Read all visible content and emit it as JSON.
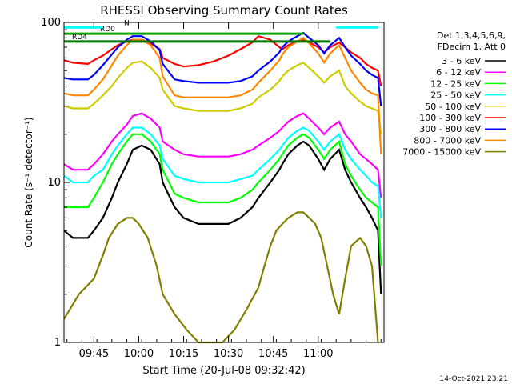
{
  "chart_data": {
    "type": "line",
    "title": "RHESSI Observing Summary Count Rates",
    "xlabel": "Start Time (20-Jul-08 09:32:42)",
    "ylabel": "Count Rate (s⁻¹ detector⁻¹)",
    "yscale": "log",
    "ylim": [
      1,
      100
    ],
    "yticks": [
      {
        "v": 1,
        "label": "1"
      },
      {
        "v": 10,
        "label": "10"
      },
      {
        "v": 100,
        "label": "100"
      }
    ],
    "xlim_min": [
      575,
      682
    ],
    "xticks": [
      {
        "m": 585,
        "label": "09:45"
      },
      {
        "m": 600,
        "label": "10:00"
      },
      {
        "m": 615,
        "label": "10:15"
      },
      {
        "m": 630,
        "label": "10:30"
      },
      {
        "m": 645,
        "label": "10:45"
      },
      {
        "m": 660,
        "label": "11:00"
      }
    ],
    "legend_header": [
      "Det 1,3,4,5,6,9,",
      "FDecim 1, Att 0"
    ],
    "flags": [
      {
        "label": "RD0",
        "level": 85,
        "segments": [
          [
            575,
            655
          ]
        ],
        "color": "#00aa00"
      },
      {
        "label": "RD4",
        "level": 76,
        "segments": [
          [
            575,
            664
          ]
        ],
        "color": "#007700"
      },
      {
        "label": "N",
        "level": 93,
        "segments": [
          [
            575,
            588
          ],
          [
            666,
            680
          ]
        ],
        "color": "#00ffff"
      }
    ],
    "series": [
      {
        "name": "3 - 6 keV",
        "color": "#000000",
        "x": [
          575,
          578,
          583,
          585,
          588,
          591,
          593,
          596,
          598,
          601,
          604,
          607,
          608,
          612,
          615,
          620,
          625,
          630,
          634,
          638,
          640,
          644,
          647,
          648,
          650,
          653,
          655,
          657,
          660,
          662,
          664,
          667,
          669,
          671,
          674,
          676,
          678,
          680,
          681
        ],
        "y": [
          5,
          4.5,
          4.5,
          5,
          6,
          8,
          10,
          13,
          16,
          17,
          16,
          13,
          10,
          7,
          6,
          5.5,
          5.5,
          5.5,
          6,
          7,
          8,
          10,
          12,
          13,
          15,
          17,
          18,
          17,
          14,
          12,
          14,
          16,
          12,
          10,
          8,
          7,
          6,
          5,
          2
        ]
      },
      {
        "name": "6 - 12 keV",
        "color": "#ff00ff",
        "x": [
          575,
          578,
          583,
          585,
          588,
          591,
          593,
          596,
          598,
          601,
          604,
          607,
          608,
          612,
          615,
          620,
          625,
          630,
          634,
          638,
          640,
          644,
          647,
          648,
          650,
          653,
          655,
          657,
          660,
          662,
          664,
          667,
          669,
          671,
          674,
          676,
          678,
          680,
          681
        ],
        "y": [
          13,
          12,
          12,
          13,
          15,
          18,
          20,
          23,
          26,
          27,
          25,
          22,
          18,
          16,
          15,
          14.5,
          14.5,
          14.5,
          15,
          16,
          17,
          19,
          21,
          22,
          24,
          26,
          27,
          25,
          22,
          20,
          22,
          24,
          20,
          18,
          15,
          14,
          13,
          12,
          8
        ]
      },
      {
        "name": "12 - 25 keV",
        "color": "#00ff00",
        "x": [
          575,
          578,
          583,
          585,
          588,
          591,
          593,
          596,
          598,
          601,
          604,
          607,
          608,
          612,
          615,
          620,
          625,
          630,
          634,
          638,
          640,
          644,
          647,
          648,
          650,
          653,
          655,
          657,
          660,
          662,
          664,
          667,
          669,
          671,
          674,
          676,
          678,
          680,
          681
        ],
        "y": [
          7,
          7,
          7,
          8,
          10,
          13,
          15,
          18,
          20,
          20,
          18,
          15,
          12,
          8.5,
          8,
          7.5,
          7.5,
          7.5,
          8,
          9,
          10,
          12,
          14,
          15,
          17,
          19,
          20,
          19,
          16,
          14,
          16,
          18,
          13,
          11,
          9,
          8,
          7.5,
          7,
          3
        ]
      },
      {
        "name": "25 - 50 keV",
        "color": "#00ffff",
        "x": [
          575,
          578,
          583,
          585,
          588,
          591,
          593,
          596,
          598,
          601,
          604,
          607,
          608,
          612,
          615,
          620,
          625,
          630,
          634,
          638,
          640,
          644,
          647,
          648,
          650,
          653,
          655,
          657,
          660,
          662,
          664,
          667,
          669,
          671,
          674,
          676,
          678,
          680,
          681
        ],
        "y": [
          11,
          10,
          10,
          11,
          12,
          15,
          17,
          20,
          22,
          22,
          20,
          17,
          14,
          11,
          10.5,
          10,
          10,
          10,
          10.5,
          11,
          12,
          14,
          16,
          17,
          19,
          21,
          22,
          21,
          18,
          16,
          18,
          20,
          16,
          14,
          12,
          11,
          10,
          9.5,
          6
        ]
      },
      {
        "name": "50 - 100 keV",
        "color": "#cccc00",
        "x": [
          575,
          578,
          583,
          585,
          588,
          591,
          593,
          596,
          598,
          601,
          604,
          607,
          608,
          612,
          615,
          620,
          625,
          630,
          634,
          638,
          640,
          644,
          647,
          648,
          650,
          653,
          655,
          657,
          660,
          662,
          664,
          667,
          669,
          671,
          674,
          676,
          678,
          680,
          681
        ],
        "y": [
          30,
          29,
          29,
          31,
          35,
          40,
          45,
          52,
          56,
          57,
          52,
          45,
          38,
          30,
          29,
          28,
          28,
          28,
          29,
          31,
          34,
          38,
          43,
          46,
          50,
          54,
          56,
          52,
          46,
          42,
          46,
          50,
          40,
          36,
          32,
          30,
          29,
          28,
          20
        ]
      },
      {
        "name": "100 - 300 keV",
        "color": "#ff0000",
        "x": [
          575,
          578,
          583,
          585,
          588,
          591,
          593,
          596,
          598,
          601,
          604,
          607,
          608,
          612,
          615,
          620,
          625,
          630,
          634,
          638,
          640,
          644,
          647,
          648,
          650,
          653,
          655,
          657,
          660,
          662,
          664,
          667,
          669,
          671,
          674,
          676,
          678,
          680,
          681
        ],
        "y": [
          58,
          56,
          55,
          58,
          62,
          68,
          72,
          76,
          78,
          78,
          74,
          68,
          60,
          55,
          53,
          54,
          57,
          62,
          68,
          75,
          82,
          78,
          70,
          68,
          72,
          76,
          78,
          75,
          70,
          65,
          70,
          75,
          70,
          65,
          60,
          55,
          52,
          50,
          40
        ]
      },
      {
        "name": "300 - 800 keV",
        "color": "#0000ff",
        "x": [
          575,
          578,
          583,
          585,
          588,
          591,
          593,
          596,
          598,
          601,
          604,
          607,
          608,
          612,
          615,
          620,
          625,
          630,
          634,
          638,
          640,
          644,
          647,
          648,
          650,
          653,
          655,
          657,
          660,
          662,
          664,
          667,
          669,
          671,
          674,
          676,
          678,
          680,
          681
        ],
        "y": [
          45,
          44,
          44,
          47,
          54,
          63,
          70,
          78,
          82,
          82,
          76,
          67,
          55,
          44,
          43,
          42,
          42,
          42,
          43,
          46,
          50,
          57,
          65,
          70,
          76,
          82,
          86,
          80,
          72,
          64,
          72,
          80,
          70,
          62,
          55,
          50,
          47,
          45,
          30
        ]
      },
      {
        "name": "800 - 7000 keV",
        "color": "#ff8800",
        "x": [
          575,
          578,
          583,
          585,
          588,
          591,
          593,
          596,
          598,
          601,
          604,
          607,
          608,
          612,
          615,
          620,
          625,
          630,
          634,
          638,
          640,
          644,
          647,
          648,
          650,
          653,
          655,
          657,
          660,
          662,
          664,
          667,
          669,
          671,
          674,
          676,
          678,
          680,
          681
        ],
        "y": [
          36,
          35,
          35,
          38,
          44,
          54,
          62,
          72,
          78,
          78,
          72,
          60,
          46,
          35,
          34,
          34,
          34,
          34,
          35,
          38,
          42,
          50,
          58,
          63,
          70,
          76,
          80,
          74,
          64,
          56,
          64,
          72,
          60,
          50,
          42,
          38,
          36,
          35,
          15
        ]
      },
      {
        "name": "7000 - 15000 keV",
        "color": "#808000",
        "x": [
          575,
          580,
          585,
          588,
          590,
          593,
          596,
          598,
          600,
          603,
          606,
          608,
          612,
          616,
          620,
          624,
          628,
          632,
          636,
          640,
          642,
          644,
          646,
          648,
          650,
          653,
          655,
          657,
          659,
          661,
          663,
          665,
          667,
          669,
          671,
          674,
          676,
          678,
          680
        ],
        "y": [
          1.4,
          2,
          2.5,
          3.5,
          4.5,
          5.5,
          6,
          6,
          5.5,
          4.5,
          3,
          2,
          1.5,
          1.2,
          1,
          1,
          1,
          1.2,
          1.6,
          2.2,
          3,
          4,
          5,
          5.5,
          6,
          6.5,
          6.5,
          6,
          5.5,
          4.5,
          3,
          2,
          1.5,
          2.5,
          4,
          4.5,
          4,
          3,
          1
        ]
      }
    ],
    "legend_placement": "top-right, outside plot",
    "grid": false
  },
  "footer_stamp": "14-Oct-2021 23:21"
}
